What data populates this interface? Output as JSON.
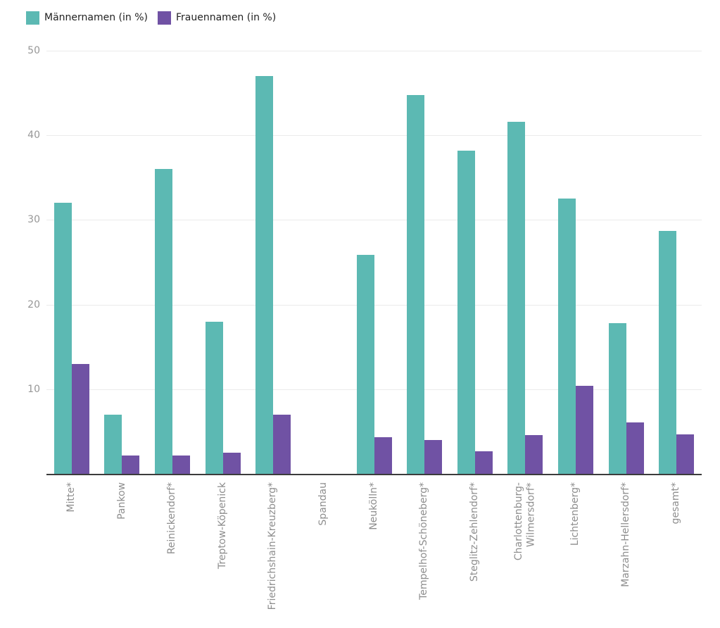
{
  "chart_data": {
    "type": "bar",
    "title": "",
    "xlabel": "",
    "ylabel": "",
    "ylim": [
      0,
      50
    ],
    "yticks": [
      10,
      20,
      30,
      40,
      50
    ],
    "grid": true,
    "legend_position": "top-left",
    "categories": [
      "Mitte*",
      "Pankow",
      "Reinickendorf*",
      "Treptow-Köpenick",
      "Friedrichshain-Kreuzberg*",
      "Spandau",
      "Neukölln*",
      "Tempelhof-Schöneberg*",
      "Steglitz-Zehlendorf*",
      "Charlottenburg-\nWilmersdorf*",
      "Lichtenberg*",
      "Marzahn-Hellersdorf*",
      "gesamt*"
    ],
    "series": [
      {
        "name": "Männernamen (in %)",
        "color": "#5cb9b3",
        "values": [
          32,
          7,
          36,
          18,
          47,
          0,
          25.9,
          44.8,
          38.2,
          41.6,
          32.5,
          17.8,
          28.7
        ]
      },
      {
        "name": "Frauennamen (in %)",
        "color": "#7052a4",
        "values": [
          13,
          2.2,
          2.2,
          2.5,
          7,
          0,
          4.3,
          4.0,
          2.7,
          4.6,
          10.4,
          6.1,
          4.7
        ]
      }
    ],
    "colors": {
      "grid": "#ebebeb",
      "axis_line": "#3c3c3c",
      "tick_text": "#979797",
      "category_text": "#8e8e8e",
      "legend_text": "#222222",
      "background": "#ffffff"
    }
  }
}
